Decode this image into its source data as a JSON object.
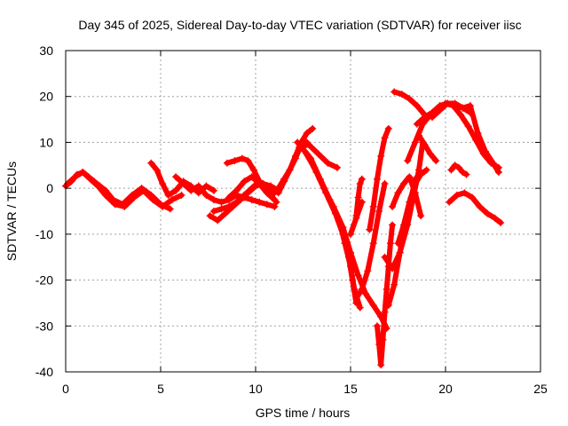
{
  "chart_data": {
    "type": "scatter",
    "title": "Day 345 of 2025, Sidereal Day-to-day VTEC variation (SDTVAR) for receiver iisc",
    "xlabel": "GPS time / hours",
    "ylabel": "SDTVAR / TECUs",
    "xlim": [
      0,
      25
    ],
    "ylim": [
      -40,
      30
    ],
    "xticks": [
      "0",
      "5",
      "10",
      "15",
      "20",
      "25"
    ],
    "yticks": [
      "-40",
      "-30",
      "-20",
      "-10",
      "0",
      "10",
      "20",
      "30"
    ],
    "grid": true,
    "marker": "plus",
    "color": "#ff0000",
    "series": [
      {
        "x": [
          0.0,
          0.3,
          0.6,
          0.9,
          1.2,
          1.5,
          1.8,
          2.1,
          2.5,
          3.0,
          3.5,
          4.0,
          4.5,
          5.0,
          5.5
        ],
        "y": [
          0.5,
          1.5,
          3.0,
          3.5,
          2.5,
          1.5,
          0.5,
          -0.5,
          -2.5,
          -3.5,
          -1.5,
          0.0,
          -1.5,
          -3.5,
          -4.5
        ]
      },
      {
        "x": [
          0.1,
          0.5,
          0.9,
          1.3,
          1.7,
          2.1,
          2.6,
          3.1,
          3.6,
          4.1,
          4.6,
          5.1,
          5.6,
          6.1
        ],
        "y": [
          1.0,
          2.5,
          3.5,
          2.0,
          0.5,
          -1.5,
          -3.5,
          -4.0,
          -2.0,
          -0.5,
          -2.5,
          -4.0,
          -2.5,
          -1.5
        ]
      },
      {
        "x": [
          4.5,
          4.8,
          5.1,
          5.4,
          5.8,
          6.2,
          6.6,
          7.0,
          7.4,
          7.8
        ],
        "y": [
          5.5,
          4.0,
          1.0,
          -1.5,
          -0.5,
          1.5,
          0.5,
          -1.0,
          0.5,
          -0.5
        ]
      },
      {
        "x": [
          5.8,
          6.2,
          6.6,
          7.0,
          7.4,
          7.8,
          8.2,
          8.6,
          9.0,
          9.4,
          9.8,
          10.2,
          10.6,
          11.0
        ],
        "y": [
          2.5,
          1.0,
          -0.5,
          0.5,
          -1.5,
          -2.5,
          -3.0,
          -2.5,
          -1.5,
          -2.0,
          -2.5,
          -3.0,
          -3.5,
          -4.0
        ]
      },
      {
        "x": [
          7.6,
          8.0,
          8.4,
          8.8,
          9.2,
          9.6,
          10.0,
          10.4,
          10.8,
          11.2
        ],
        "y": [
          -6.0,
          -7.0,
          -5.5,
          -4.0,
          -2.5,
          -1.0,
          0.5,
          1.0,
          0.5,
          -0.5
        ]
      },
      {
        "x": [
          7.8,
          8.2,
          8.6,
          9.0,
          9.4,
          9.8,
          10.2,
          10.6,
          11.0
        ],
        "y": [
          -5.0,
          -4.5,
          -4.0,
          -3.0,
          -1.5,
          0.0,
          1.5,
          0.5,
          -1.0
        ]
      },
      {
        "x": [
          8.5,
          8.9,
          9.3,
          9.6,
          9.9,
          10.2,
          10.5,
          10.8,
          11.1
        ],
        "y": [
          5.5,
          6.0,
          6.5,
          6.0,
          4.0,
          1.5,
          0.0,
          -1.5,
          -3.0
        ]
      },
      {
        "x": [
          8.6,
          9.0,
          9.4,
          9.8,
          10.2,
          10.6,
          11.0
        ],
        "y": [
          -2.0,
          -0.5,
          1.5,
          2.5,
          1.0,
          -1.0,
          -2.5
        ]
      },
      {
        "x": [
          11.2,
          11.5,
          11.8,
          12.1,
          12.3,
          12.5,
          12.7
        ],
        "y": [
          0.0,
          2.0,
          4.0,
          6.5,
          8.5,
          9.5,
          10.0
        ]
      },
      {
        "x": [
          11.2,
          11.5,
          11.8,
          12.1,
          12.4,
          12.7,
          13.0
        ],
        "y": [
          -1.0,
          1.5,
          4.0,
          7.0,
          10.0,
          12.0,
          13.0
        ]
      },
      {
        "x": [
          12.3,
          12.8,
          13.3,
          13.8,
          14.3
        ],
        "y": [
          9.0,
          9.5,
          7.5,
          5.5,
          4.5
        ]
      },
      {
        "x": [
          12.2,
          12.7,
          13.2,
          13.7,
          14.2,
          14.6,
          14.9,
          15.1,
          15.3
        ],
        "y": [
          10.0,
          7.5,
          3.5,
          -1.0,
          -5.5,
          -10.0,
          -15.0,
          -20.0,
          -25.0
        ]
      },
      {
        "x": [
          12.4,
          12.9,
          13.4,
          13.9,
          14.4,
          14.7,
          15.0,
          15.2,
          15.5
        ],
        "y": [
          9.0,
          6.5,
          2.0,
          -2.5,
          -7.0,
          -12.0,
          -17.0,
          -22.0,
          -26.0
        ]
      },
      {
        "x": [
          12.6,
          13.1,
          13.6,
          14.1,
          14.6,
          15.0,
          15.4,
          15.8,
          16.2,
          16.6,
          16.9
        ],
        "y": [
          8.0,
          4.5,
          0.0,
          -4.0,
          -8.5,
          -14.0,
          -19.0,
          -23.0,
          -25.5,
          -28.0,
          -30.5
        ]
      },
      {
        "x": [
          15.3,
          15.4,
          15.5,
          15.6
        ],
        "y": [
          -6.0,
          -2.0,
          1.0,
          2.0
        ]
      },
      {
        "x": [
          15.3,
          15.6,
          15.9,
          16.2,
          16.5,
          16.8
        ],
        "y": [
          -24.0,
          -22.0,
          -18.0,
          -12.0,
          -5.0,
          1.0
        ]
      },
      {
        "x": [
          15.0,
          15.3,
          15.6
        ],
        "y": [
          -10.0,
          -6.5,
          -3.0
        ]
      },
      {
        "x": [
          16.0,
          16.2,
          16.4,
          16.6,
          16.8,
          17.0
        ],
        "y": [
          -9.0,
          -4.0,
          2.0,
          7.0,
          11.0,
          13.0
        ]
      },
      {
        "x": [
          16.4,
          16.5,
          16.6,
          16.7,
          16.8,
          16.9,
          17.0,
          17.1,
          17.2
        ],
        "y": [
          -30.0,
          -34.0,
          -38.5,
          -33.0,
          -27.0,
          -22.0,
          -17.0,
          -12.0,
          -8.0
        ]
      },
      {
        "x": [
          16.8,
          17.2,
          17.6,
          18.0,
          18.3,
          18.6,
          18.8
        ],
        "y": [
          -15.0,
          -17.5,
          -14.0,
          -8.0,
          -2.0,
          4.0,
          10.0
        ]
      },
      {
        "x": [
          17.0,
          17.3,
          17.6,
          17.9,
          18.2,
          18.4
        ],
        "y": [
          -25.5,
          -21.0,
          -14.0,
          -7.0,
          -2.0,
          2.0
        ]
      },
      {
        "x": [
          17.2,
          17.5,
          17.8,
          18.1,
          18.4,
          18.7
        ],
        "y": [
          -4.0,
          -1.0,
          1.0,
          2.5,
          -1.0,
          -6.0
        ]
      },
      {
        "x": [
          17.5,
          17.8,
          18.1,
          18.4,
          18.7,
          19.0
        ],
        "y": [
          -12.0,
          -8.0,
          -3.0,
          1.0,
          3.0,
          4.0
        ]
      },
      {
        "x": [
          18.0,
          18.4,
          18.8,
          19.2
        ],
        "y": [
          6.0,
          10.0,
          14.0,
          16.0
        ]
      },
      {
        "x": [
          17.3,
          17.7,
          18.1,
          18.5,
          18.9,
          19.3,
          19.7,
          20.1,
          20.5,
          20.9,
          21.3
        ],
        "y": [
          21.0,
          20.5,
          19.5,
          18.0,
          16.0,
          15.5,
          17.0,
          18.5,
          18.5,
          17.5,
          16.5
        ]
      },
      {
        "x": [
          18.5,
          18.9,
          19.3,
          19.7,
          20.1,
          20.5,
          20.9,
          21.3,
          21.7,
          22.1,
          22.5,
          22.8
        ],
        "y": [
          14.0,
          15.5,
          16.5,
          18.0,
          18.5,
          18.0,
          17.5,
          18.0,
          12.0,
          8.0,
          5.5,
          3.5
        ]
      },
      {
        "x": [
          18.6,
          18.9,
          19.2,
          19.5
        ],
        "y": [
          11.5,
          9.5,
          7.5,
          6.0
        ]
      },
      {
        "x": [
          20.0,
          20.4,
          20.8,
          21.2,
          21.6,
          22.0,
          22.4,
          22.8
        ],
        "y": [
          18.5,
          18.0,
          16.0,
          13.5,
          10.5,
          7.5,
          5.5,
          4.5
        ]
      },
      {
        "x": [
          20.3,
          20.5,
          20.7,
          20.9,
          21.1
        ],
        "y": [
          4.0,
          5.0,
          4.5,
          3.5,
          3.0
        ]
      },
      {
        "x": [
          20.2,
          20.6,
          21.0,
          21.4,
          21.8,
          22.2,
          22.6,
          22.9
        ],
        "y": [
          -3.0,
          -1.5,
          -1.0,
          -2.0,
          -4.0,
          -5.5,
          -6.5,
          -7.5
        ]
      }
    ]
  }
}
